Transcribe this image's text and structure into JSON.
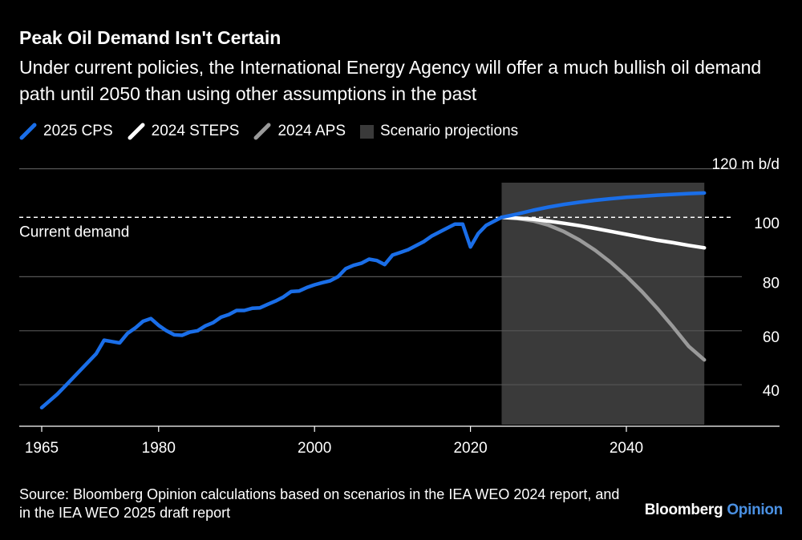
{
  "title": "Peak Oil Demand Isn't Certain",
  "subtitle": "Under current policies, the International Energy Agency will offer a much bullish oil demand path until 2050 than using other assumptions in the past",
  "source": "Source: Bloomberg Opinion calculations based on scenarios in the IEA WEO 2024 report, and in the IEA WEO 2025 draft report",
  "brand": {
    "name": "Bloomberg",
    "suffix": "Opinion"
  },
  "colors": {
    "cps": "#1a6ee8",
    "steps": "#ffffff",
    "aps": "#9a9a9a",
    "projection": "#3a3a3a",
    "grid": "#555555"
  },
  "chart_data": {
    "type": "line",
    "title": "Peak Oil Demand Isn't Certain",
    "ylabel": "120 m b/d",
    "xlim": [
      1964,
      2055
    ],
    "ylim": [
      30,
      120
    ],
    "xticks": [
      1965,
      1980,
      2000,
      2020,
      2040
    ],
    "yticks": [
      40,
      60,
      80,
      100,
      120
    ],
    "ytick_labels": [
      "40",
      "60",
      "80",
      "100",
      "120 m b/d"
    ],
    "grid": true,
    "legend_position": "top-left",
    "projection_region": {
      "label": "Scenario projections",
      "x": [
        2024,
        2050
      ]
    },
    "reference_line": {
      "label": "Current demand",
      "y": 102
    },
    "series": [
      {
        "name": "2025 CPS",
        "x": [
          1965,
          1966,
          1967,
          1968,
          1969,
          1970,
          1971,
          1972,
          1973,
          1974,
          1975,
          1976,
          1977,
          1978,
          1979,
          1980,
          1981,
          1982,
          1983,
          1984,
          1985,
          1986,
          1987,
          1988,
          1989,
          1990,
          1991,
          1992,
          1993,
          1994,
          1995,
          1996,
          1997,
          1998,
          1999,
          2000,
          2001,
          2002,
          2003,
          2004,
          2005,
          2006,
          2007,
          2008,
          2009,
          2010,
          2011,
          2012,
          2013,
          2014,
          2015,
          2016,
          2017,
          2018,
          2019,
          2020,
          2021,
          2022,
          2023,
          2024,
          2026,
          2028,
          2030,
          2032,
          2034,
          2036,
          2038,
          2040,
          2042,
          2044,
          2046,
          2048,
          2050
        ],
        "y": [
          31.5,
          34,
          36.5,
          39.5,
          42.5,
          45.5,
          48.5,
          51.5,
          56.5,
          56,
          55.5,
          59,
          61,
          63.5,
          64.5,
          62,
          60,
          58.5,
          58.3,
          59.5,
          60,
          61.8,
          63,
          65,
          66,
          67.5,
          67.5,
          68.3,
          68.5,
          69.8,
          71,
          72.5,
          74.5,
          74.7,
          76,
          77,
          77.8,
          78.5,
          80,
          83,
          84.2,
          85,
          86.5,
          86,
          84.5,
          88,
          89,
          90,
          91.5,
          93,
          95,
          96.5,
          98,
          99.5,
          99.5,
          91,
          96,
          99,
          100.5,
          102,
          103.2,
          104.6,
          105.8,
          106.8,
          107.6,
          108.3,
          108.9,
          109.4,
          109.8,
          110.2,
          110.5,
          110.8,
          111
        ]
      },
      {
        "name": "2024 STEPS",
        "x": [
          2024,
          2026,
          2028,
          2030,
          2032,
          2034,
          2036,
          2038,
          2040,
          2042,
          2044,
          2046,
          2048,
          2050
        ],
        "y": [
          102,
          101.7,
          101.3,
          100.6,
          99.8,
          98.9,
          97.9,
          96.8,
          95.7,
          94.6,
          93.5,
          92.6,
          91.6,
          90.7
        ]
      },
      {
        "name": "2024 APS",
        "x": [
          2024,
          2026,
          2028,
          2030,
          2032,
          2034,
          2036,
          2038,
          2040,
          2042,
          2044,
          2046,
          2048,
          2050
        ],
        "y": [
          102,
          101.6,
          100.7,
          99.1,
          96.7,
          93.6,
          89.8,
          85.3,
          80.2,
          74.5,
          68.2,
          61.4,
          54.2,
          49.2
        ]
      }
    ]
  }
}
